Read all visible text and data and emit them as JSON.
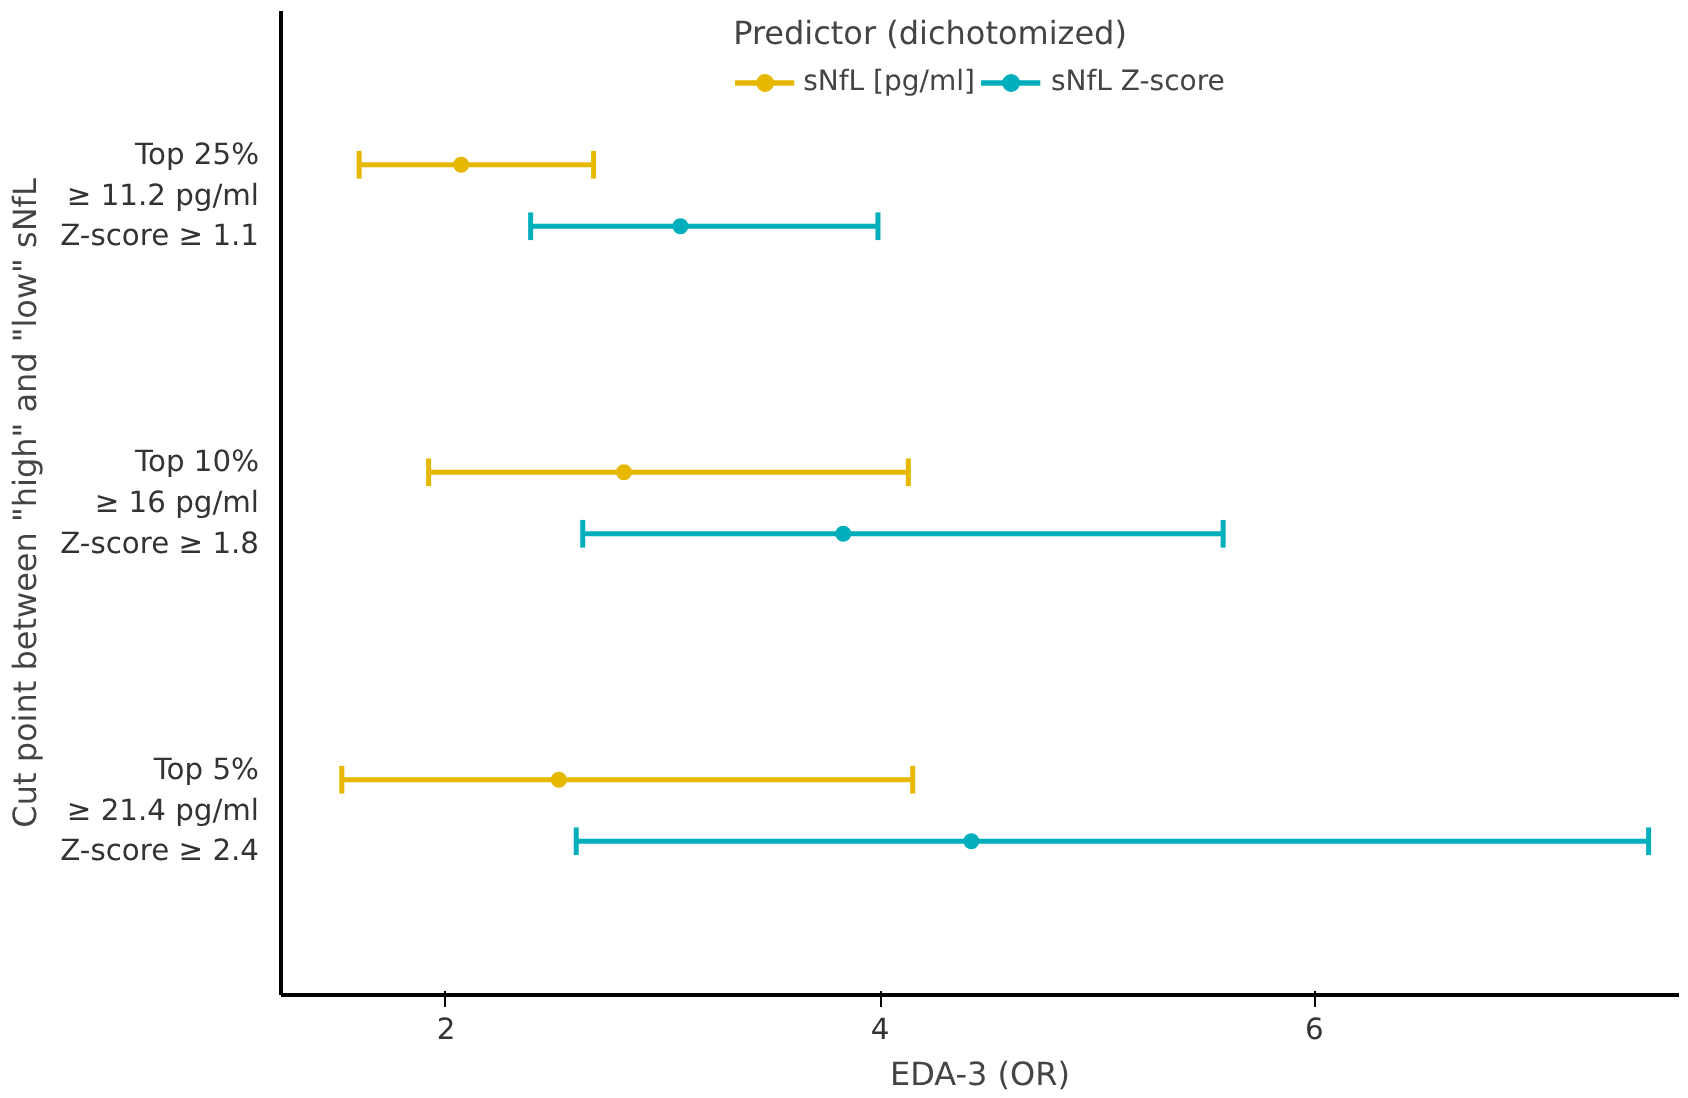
{
  "chart_data": {
    "type": "scatter",
    "orientation": "horizontal",
    "categories": [
      "Top 25%\n≥ 11.2 pg/ml\nZ-score ≥ 1.1",
      "Top 10%\n≥ 16 pg/ml\nZ-score ≥ 1.8",
      "Top 5%\n≥ 21.4 pg/ml\nZ-score ≥ 2.4"
    ],
    "series": [
      {
        "name": "sNfL [pg/ml]",
        "color": "#e7b800",
        "values": [
          2.07,
          2.82,
          2.52
        ],
        "errors": [
          [
            1.6,
            2.68
          ],
          [
            1.92,
            4.13
          ],
          [
            1.52,
            4.15
          ]
        ]
      },
      {
        "name": "sNfL Z-score",
        "color": "#00afbb",
        "values": [
          3.08,
          3.83,
          4.42
        ],
        "errors": [
          [
            2.39,
            3.99
          ],
          [
            2.63,
            5.58
          ],
          [
            2.6,
            7.54
          ]
        ]
      }
    ],
    "xlim": [
      1.24,
      7.68
    ],
    "xticks": [
      2,
      4,
      6
    ],
    "xlabel": "EDA-3 (OR)",
    "ylabel": "Cut point between \"high\" and \"low\" sNfL",
    "legend_title": "Predictor (dichotomized)",
    "legend": "top",
    "marker": "circle",
    "grid": false
  }
}
